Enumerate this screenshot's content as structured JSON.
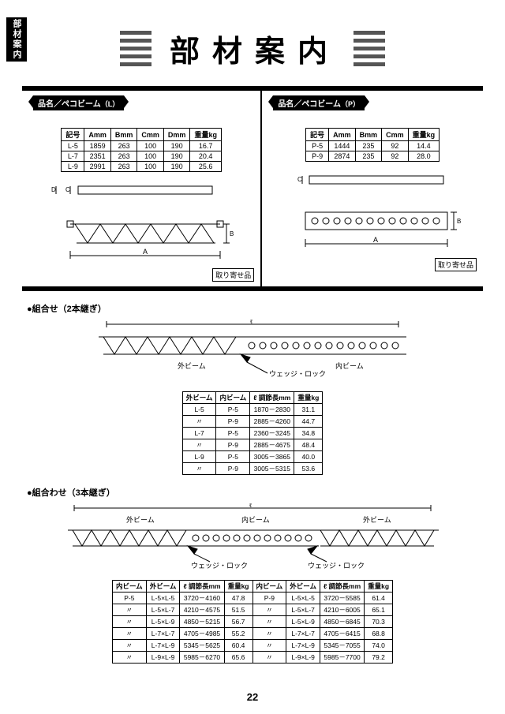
{
  "side_tab": "部材案内",
  "title": "部材案内",
  "pill_prefix": "品名／",
  "beam_L": {
    "name": "ペコビーム",
    "suffix": "（L）",
    "columns": [
      "記号",
      "Amm",
      "Bmm",
      "Cmm",
      "Dmm",
      "重量kg"
    ],
    "rows": [
      [
        "L-5",
        "1859",
        "263",
        "100",
        "190",
        "16.7"
      ],
      [
        "L-7",
        "2351",
        "263",
        "100",
        "190",
        "20.4"
      ],
      [
        "L-9",
        "2991",
        "263",
        "100",
        "190",
        "25.6"
      ]
    ],
    "order_tag": "取り寄せ品"
  },
  "beam_P": {
    "name": "ペコビーム",
    "suffix": "（P）",
    "columns": [
      "記号",
      "Amm",
      "Bmm",
      "Cmm",
      "重量kg"
    ],
    "rows": [
      [
        "P-5",
        "1444",
        "235",
        "92",
        "14.4"
      ],
      [
        "P-9",
        "2874",
        "235",
        "92",
        "28.0"
      ]
    ],
    "order_tag": "取り寄せ品"
  },
  "section2": {
    "heading": "●組合せ（2本継ぎ）",
    "outer_label": "外ビーム",
    "inner_label": "内ビーム",
    "wedge_label": "ウェッジ・ロック",
    "columns": [
      "外ビーム",
      "内ビーム",
      "ℓ 調節長mm",
      "重量kg"
    ],
    "rows": [
      [
        "L-5",
        "P-5",
        "1870－2830",
        "31.1"
      ],
      [
        "〃",
        "P-9",
        "2885－4260",
        "44.7"
      ],
      [
        "L-7",
        "P-5",
        "2360－3245",
        "34.8"
      ],
      [
        "〃",
        "P-9",
        "2885－4675",
        "48.4"
      ],
      [
        "L-9",
        "P-5",
        "3005－3865",
        "40.0"
      ],
      [
        "〃",
        "P-9",
        "3005－5315",
        "53.6"
      ]
    ]
  },
  "section3": {
    "heading": "●組合わせ（3本継ぎ）",
    "outer_label": "外ビーム",
    "inner_label": "内ビーム",
    "wedge_label": "ウェッジ・ロック",
    "columns": [
      "内ビーム",
      "外ビーム",
      "ℓ 調節長mm",
      "重量kg",
      "内ビーム",
      "外ビーム",
      "ℓ 調節長mm",
      "重量kg"
    ],
    "rows": [
      [
        "P-5",
        "L-5×L-5",
        "3720－4160",
        "47.8",
        "P-9",
        "L-5×L-5",
        "3720－5585",
        "61.4"
      ],
      [
        "〃",
        "L-5×L-7",
        "4210－4575",
        "51.5",
        "〃",
        "L-5×L-7",
        "4210－6005",
        "65.1"
      ],
      [
        "〃",
        "L-5×L-9",
        "4850－5215",
        "56.7",
        "〃",
        "L-5×L-9",
        "4850－6845",
        "70.3"
      ],
      [
        "〃",
        "L-7×L-7",
        "4705－4985",
        "55.2",
        "〃",
        "L-7×L-7",
        "4705－6415",
        "68.8"
      ],
      [
        "〃",
        "L-7×L-9",
        "5345－5625",
        "60.4",
        "〃",
        "L-7×L-9",
        "5345－7055",
        "74.0"
      ],
      [
        "〃",
        "L-9×L-9",
        "5985－6270",
        "65.6",
        "〃",
        "L-9×L-9",
        "5985－7700",
        "79.2"
      ]
    ]
  },
  "page_number": "22",
  "dim_labels": {
    "A": "A",
    "B": "B",
    "C": "C",
    "D": "D",
    "l": "ℓ"
  }
}
